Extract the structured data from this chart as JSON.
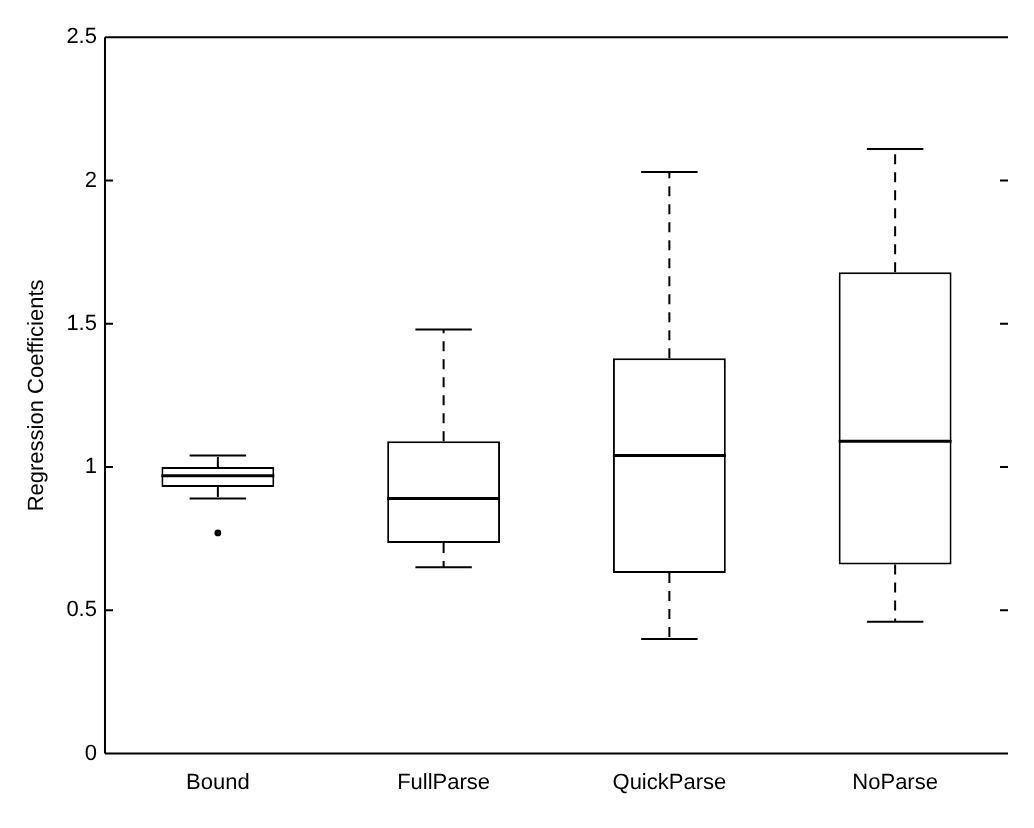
{
  "chart_data": {
    "type": "box",
    "ylabel": "Regression Coefficients",
    "categories": [
      "Bound",
      "FullParse",
      "QuickParse",
      "NoParse"
    ],
    "boxes": [
      {
        "low": 0.89,
        "q1": 0.93,
        "median": 0.97,
        "q3": 1.0,
        "high": 1.04,
        "outliers": [
          0.77
        ]
      },
      {
        "low": 0.65,
        "q1": 0.735,
        "median": 0.89,
        "q3": 1.09,
        "high": 1.48
      },
      {
        "low": 0.4,
        "q1": 0.63,
        "median": 1.04,
        "q3": 1.38,
        "high": 2.03
      },
      {
        "low": 0.46,
        "q1": 0.66,
        "median": 1.09,
        "q3": 1.68,
        "high": 2.11
      }
    ],
    "color": "#000000",
    "ylim": [
      0,
      2.5
    ],
    "yticks": [
      0,
      0.5,
      1,
      1.5,
      2,
      2.5
    ],
    "grid": false,
    "legend": false
  }
}
